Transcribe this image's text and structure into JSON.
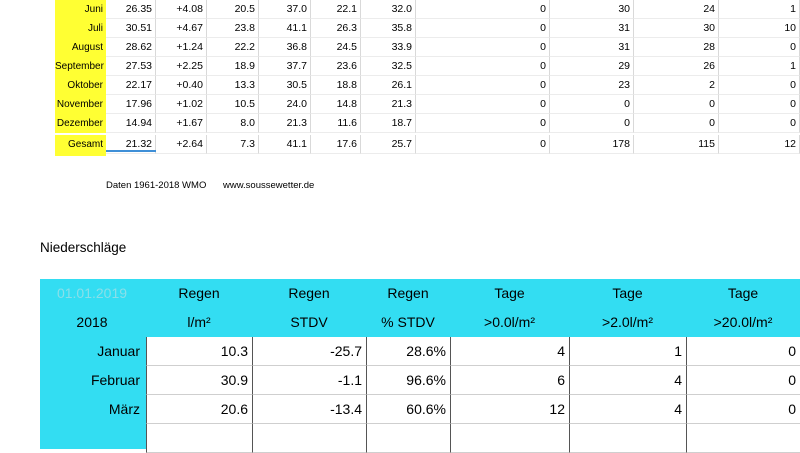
{
  "temperature_table": {
    "rows": [
      {
        "month": "Juni",
        "values": [
          "26.35",
          "+4.08",
          "20.5",
          "37.0",
          "22.1",
          "32.0",
          "0",
          "30",
          "24",
          "1"
        ]
      },
      {
        "month": "Juli",
        "values": [
          "30.51",
          "+4.67",
          "23.8",
          "41.1",
          "26.3",
          "35.8",
          "0",
          "31",
          "30",
          "10"
        ]
      },
      {
        "month": "August",
        "values": [
          "28.62",
          "+1.24",
          "22.2",
          "36.8",
          "24.5",
          "33.9",
          "0",
          "31",
          "28",
          "0"
        ]
      },
      {
        "month": "September",
        "values": [
          "27.53",
          "+2.25",
          "18.9",
          "37.7",
          "23.6",
          "32.5",
          "0",
          "29",
          "26",
          "1"
        ]
      },
      {
        "month": "Oktober",
        "values": [
          "22.17",
          "+0.40",
          "13.3",
          "30.5",
          "18.8",
          "26.1",
          "0",
          "23",
          "2",
          "0"
        ]
      },
      {
        "month": "November",
        "values": [
          "17.96",
          "+1.02",
          "10.5",
          "24.0",
          "14.8",
          "21.3",
          "0",
          "0",
          "0",
          "0"
        ]
      },
      {
        "month": "Dezember",
        "values": [
          "14.94",
          "+1.67",
          "8.0",
          "21.3",
          "11.6",
          "18.7",
          "0",
          "0",
          "0",
          "0"
        ]
      },
      {
        "month": "Gesamt",
        "values": [
          "21.32",
          "+2.64",
          "7.3",
          "41.1",
          "17.6",
          "25.7",
          "0",
          "178",
          "115",
          "12"
        ]
      }
    ],
    "footer_source": "Daten 1961-2018 WMO",
    "footer_site": "www.soussewetter.de"
  },
  "precipitation": {
    "section_title": "Niederschläge",
    "date_label": "01.01.2019",
    "year": "2018",
    "headers": [
      {
        "line1": "Regen",
        "line2": "l/m²"
      },
      {
        "line1": "Regen",
        "line2": "STDV"
      },
      {
        "line1": "Regen",
        "line2": "% STDV"
      },
      {
        "line1": "Tage",
        "line2": ">0.0l/m²"
      },
      {
        "line1": "Tage",
        "line2": ">2.0l/m²"
      },
      {
        "line1": "Tage",
        "line2": ">20.0l/m²"
      }
    ],
    "rows": [
      {
        "month": "Januar",
        "values": [
          "10.3",
          "-25.7",
          "28.6%",
          "4",
          "1",
          "0"
        ]
      },
      {
        "month": "Februar",
        "values": [
          "30.9",
          "-1.1",
          "96.6%",
          "6",
          "4",
          "0"
        ]
      },
      {
        "month": "März",
        "values": [
          "20.6",
          "-13.4",
          "60.6%",
          "12",
          "4",
          "0"
        ]
      }
    ]
  },
  "colors": {
    "month_bg": "#ffff33",
    "header_bg": "#33ddf2",
    "blue_line": "#3f8fd7"
  }
}
